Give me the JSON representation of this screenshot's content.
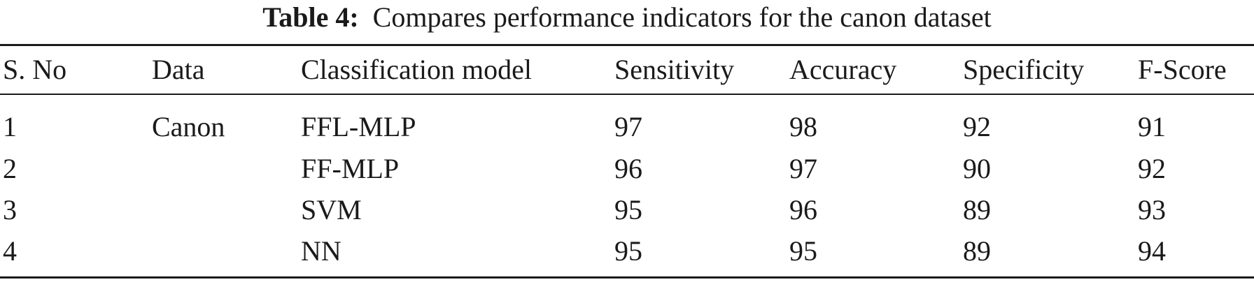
{
  "caption": {
    "label": "Table 4:",
    "text": "Compares performance indicators for the canon dataset"
  },
  "table": {
    "headers": [
      "S. No",
      "Data",
      "Classification model",
      "Sensitivity",
      "Accuracy",
      "Specificity",
      "F-Score"
    ],
    "rows": [
      [
        "1",
        "Canon",
        "FFL-MLP",
        "97",
        "98",
        "92",
        "91"
      ],
      [
        "2",
        "",
        "FF-MLP",
        "96",
        "97",
        "90",
        "92"
      ],
      [
        "3",
        "",
        "SVM",
        "95",
        "96",
        "89",
        "93"
      ],
      [
        "4",
        "",
        "NN",
        "95",
        "95",
        "89",
        "94"
      ]
    ]
  }
}
